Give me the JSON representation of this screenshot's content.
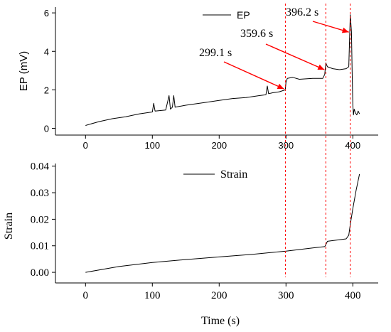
{
  "chart_data": [
    {
      "type": "line",
      "title": "",
      "xlabel": "",
      "ylabel": "EP (mV)",
      "xlim": [
        -45,
        438
      ],
      "ylim": [
        -0.35,
        6.3
      ],
      "xticks": [
        "0",
        "100",
        "200",
        "300",
        "400"
      ],
      "yticks": [
        "0",
        "2",
        "4",
        "6"
      ],
      "legend": "top-center",
      "series": [
        {
          "name": "EP",
          "x": [
            0,
            20,
            40,
            60,
            80,
            100,
            102,
            104,
            120,
            125,
            127,
            130,
            132,
            134,
            150,
            180,
            200,
            220,
            240,
            260,
            270,
            272,
            274,
            280,
            290,
            299,
            300,
            302,
            310,
            320,
            340,
            355,
            358,
            359.6,
            362,
            370,
            380,
            390,
            394,
            396.2,
            397,
            398,
            399,
            400,
            401,
            402,
            404,
            406,
            408,
            410
          ],
          "y": [
            0.15,
            0.35,
            0.5,
            0.6,
            0.75,
            0.85,
            1.3,
            0.9,
            0.95,
            1.7,
            1.0,
            1.1,
            1.7,
            1.1,
            1.2,
            1.35,
            1.45,
            1.55,
            1.6,
            1.7,
            1.75,
            2.2,
            1.8,
            1.85,
            1.9,
            2.0,
            2.4,
            2.6,
            2.65,
            2.55,
            2.6,
            2.6,
            2.8,
            3.4,
            3.2,
            3.1,
            3.05,
            3.1,
            3.2,
            5.9,
            5.5,
            5.0,
            3.0,
            1.2,
            0.7,
            1.0,
            0.8,
            0.7,
            0.9,
            0.75
          ]
        }
      ],
      "annotations": [
        {
          "text": "299.1 s",
          "x": 299.1
        },
        {
          "text": "359.6 s",
          "x": 359.6
        },
        {
          "text": "396.2 s",
          "x": 396.2
        }
      ]
    },
    {
      "type": "line",
      "title": "",
      "xlabel": "Time (s)",
      "ylabel": "Strain",
      "xlim": [
        -45,
        438
      ],
      "ylim": [
        -0.004,
        0.041
      ],
      "xticks": [
        "0",
        "100",
        "200",
        "300",
        "400"
      ],
      "yticks": [
        "0.00",
        "0.01",
        "0.02",
        "0.03",
        "0.04"
      ],
      "legend": "top-center",
      "series": [
        {
          "name": "Strain",
          "x": [
            0,
            50,
            100,
            150,
            200,
            250,
            300,
            340,
            358,
            359.6,
            362,
            390,
            394,
            396.2,
            400,
            405,
            410
          ],
          "y": [
            0.0,
            0.0022,
            0.0037,
            0.0048,
            0.0058,
            0.0068,
            0.008,
            0.0092,
            0.0097,
            0.0104,
            0.0117,
            0.0126,
            0.014,
            0.018,
            0.024,
            0.031,
            0.037
          ]
        }
      ]
    }
  ],
  "colors": {
    "series": "#000000",
    "markers": "#ff0000"
  }
}
